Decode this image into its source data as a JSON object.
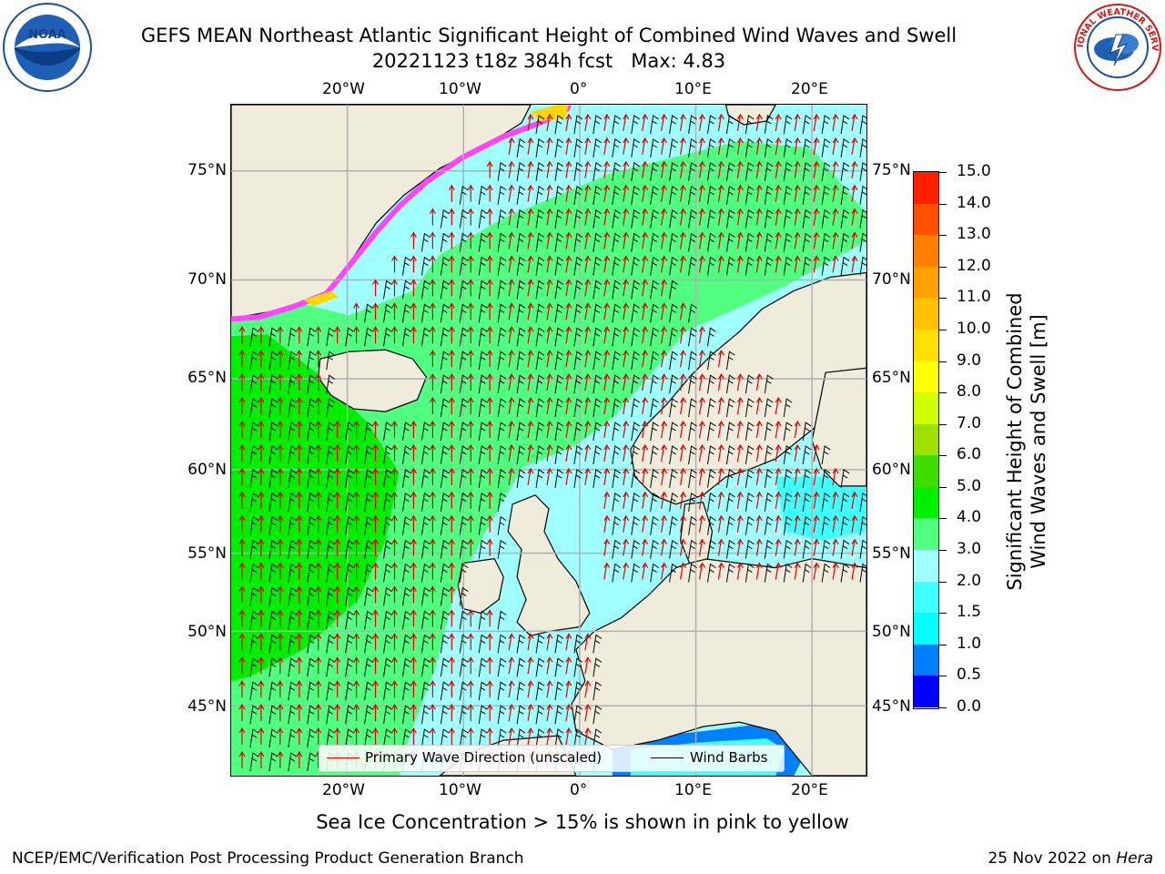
{
  "title": {
    "line1": "GEFS MEAN Northeast Atlantic Significant Height of Combined Wind Waves and Swell",
    "line2": "20221123 t18z 384h fcst   Max: 4.83"
  },
  "axes": {
    "lon_labels": [
      "20°W",
      "10°W",
      "0°",
      "10°E",
      "20°E"
    ],
    "lat_labels": [
      "75°N",
      "70°N",
      "65°N",
      "60°N",
      "55°N",
      "50°N",
      "45°N"
    ]
  },
  "legend": {
    "wave_direction_label": "Primary Wave Direction (unscaled)",
    "wind_barbs_label": "Wind Barbs",
    "wave_color": "#e00000",
    "barb_color": "#000000"
  },
  "colorbar": {
    "title_line1": "Significant Height of Combined",
    "title_line2": "Wind Waves and Swell [m]",
    "tick_labels": [
      "15.0",
      "14.0",
      "13.0",
      "12.0",
      "11.0",
      "10.0",
      "9.0",
      "8.0",
      "7.0",
      "6.0",
      "5.0",
      "4.0",
      "3.0",
      "2.0",
      "1.5",
      "1.0",
      "0.5",
      "0.0"
    ],
    "colors_bottom_to_top": [
      "#0000ff",
      "#0080ff",
      "#00ffff",
      "#40ffff",
      "#a0ffff",
      "#50ff80",
      "#00ee00",
      "#40dd00",
      "#a0e000",
      "#d0ff00",
      "#ffff00",
      "#ffe000",
      "#ffc000",
      "#ffa000",
      "#ff8000",
      "#ff5000",
      "#ff2000"
    ]
  },
  "map_colors": {
    "land": "#efecdc",
    "ice_edge": "#ff44ff",
    "ice_core": "#ffd700"
  },
  "footer": {
    "ice_note": "Sea Ice Concentration > 15% is shown in pink to yellow",
    "left": "NCEP/EMC/Verification Post Processing Product Generation Branch",
    "right_prefix": "25 Nov 2022 on ",
    "right_host": "Hera"
  },
  "logos": {
    "noaa_text": "NOAA",
    "nws_text": "NATIONAL WEATHER SERVICE"
  }
}
